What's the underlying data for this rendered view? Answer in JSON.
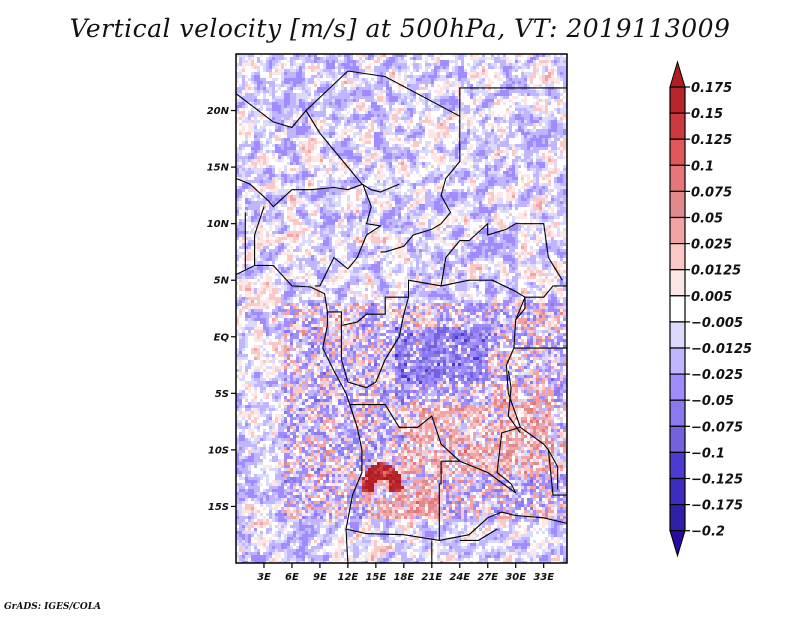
{
  "title": "Vertical velocity [m/s] at 500hPa, VT: 2019113009",
  "credit": "GrADS: IGES/COLA",
  "chart_data": {
    "type": "heatmap",
    "title": "Vertical velocity [m/s] at 500hPa, VT: 2019113009",
    "variable": "Vertical velocity",
    "units": "m/s",
    "level": "500hPa",
    "valid_time": "2019113009",
    "projection": "lat-lon",
    "xlim": [
      0,
      35.5
    ],
    "ylim": [
      -20,
      25
    ],
    "lat_ticks": [
      {
        "value": 20,
        "label": "20N"
      },
      {
        "value": 15,
        "label": "15N"
      },
      {
        "value": 10,
        "label": "10N"
      },
      {
        "value": 5,
        "label": "5N"
      },
      {
        "value": 0,
        "label": "EQ"
      },
      {
        "value": -5,
        "label": "5S"
      },
      {
        "value": -10,
        "label": "10S"
      },
      {
        "value": -15,
        "label": "15S"
      }
    ],
    "lon_ticks": [
      {
        "value": 3,
        "label": "3E"
      },
      {
        "value": 6,
        "label": "6E"
      },
      {
        "value": 9,
        "label": "9E"
      },
      {
        "value": 12,
        "label": "12E"
      },
      {
        "value": 15,
        "label": "15E"
      },
      {
        "value": 18,
        "label": "18E"
      },
      {
        "value": 21,
        "label": "21E"
      },
      {
        "value": 24,
        "label": "24E"
      },
      {
        "value": 27,
        "label": "27E"
      },
      {
        "value": 30,
        "label": "30E"
      },
      {
        "value": 33,
        "label": "33E"
      }
    ],
    "colorbar": {
      "orientation": "vertical",
      "placement": "right",
      "extend": "both",
      "levels": [
        "0.175",
        "0.15",
        "0.125",
        "0.1",
        "0.075",
        "0.05",
        "0.025",
        "0.0125",
        "0.005",
        "-0.005",
        "-0.0125",
        "-0.025",
        "-0.05",
        "-0.075",
        "-0.1",
        "-0.125",
        "-0.175",
        "-0.2"
      ],
      "colors": [
        "#b01e24",
        "#b8262c",
        "#cc3a3e",
        "#e2575a",
        "#e6767a",
        "#e2898e",
        "#f4a3a5",
        "#fbc8c8",
        "#fde6e6",
        "#ffffff",
        "#dadaff",
        "#c0b6ff",
        "#a08cff",
        "#8a7af0",
        "#7462dc",
        "#4b3bd0",
        "#3c2cc0",
        "#3020a8",
        "#2a0aa0"
      ]
    },
    "regions": [
      {
        "description": "Strong ascent (positive, dark red) maximum",
        "lon": 15,
        "lat": -13.5,
        "value_range": [
          0.125,
          0.175
        ]
      },
      {
        "description": "Widespread positive values",
        "lon_range": [
          18,
          33
        ],
        "lat_range": [
          -12,
          -4
        ]
      },
      {
        "description": "Mixed convective signal along Gulf of Guinea coast",
        "lon_range": [
          3,
          12
        ],
        "lat_range": [
          -2,
          2
        ]
      },
      {
        "description": "Predominantly weak negative values over ocean and Sahara",
        "lon_range": [
          0,
          35
        ],
        "lat_range": [
          -20,
          25
        ]
      }
    ]
  }
}
